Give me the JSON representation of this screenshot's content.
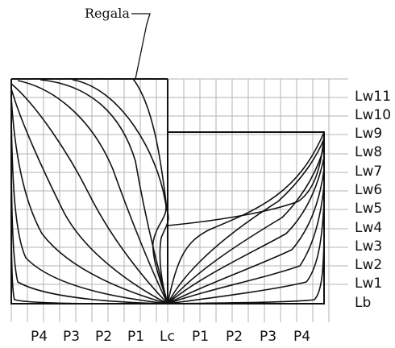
{
  "callout": {
    "label": "Regala"
  },
  "waterlines": [
    "Lw11",
    "Lw10",
    "Lw9",
    "Lw8",
    "Lw7",
    "Lw6",
    "Lw5",
    "Lw4",
    "Lw3",
    "Lw2",
    "Lw1",
    "Lb"
  ],
  "stations": [
    "P4",
    "P3",
    "P2",
    "P1",
    "Lc",
    "P1",
    "P2",
    "P3",
    "P4"
  ]
}
